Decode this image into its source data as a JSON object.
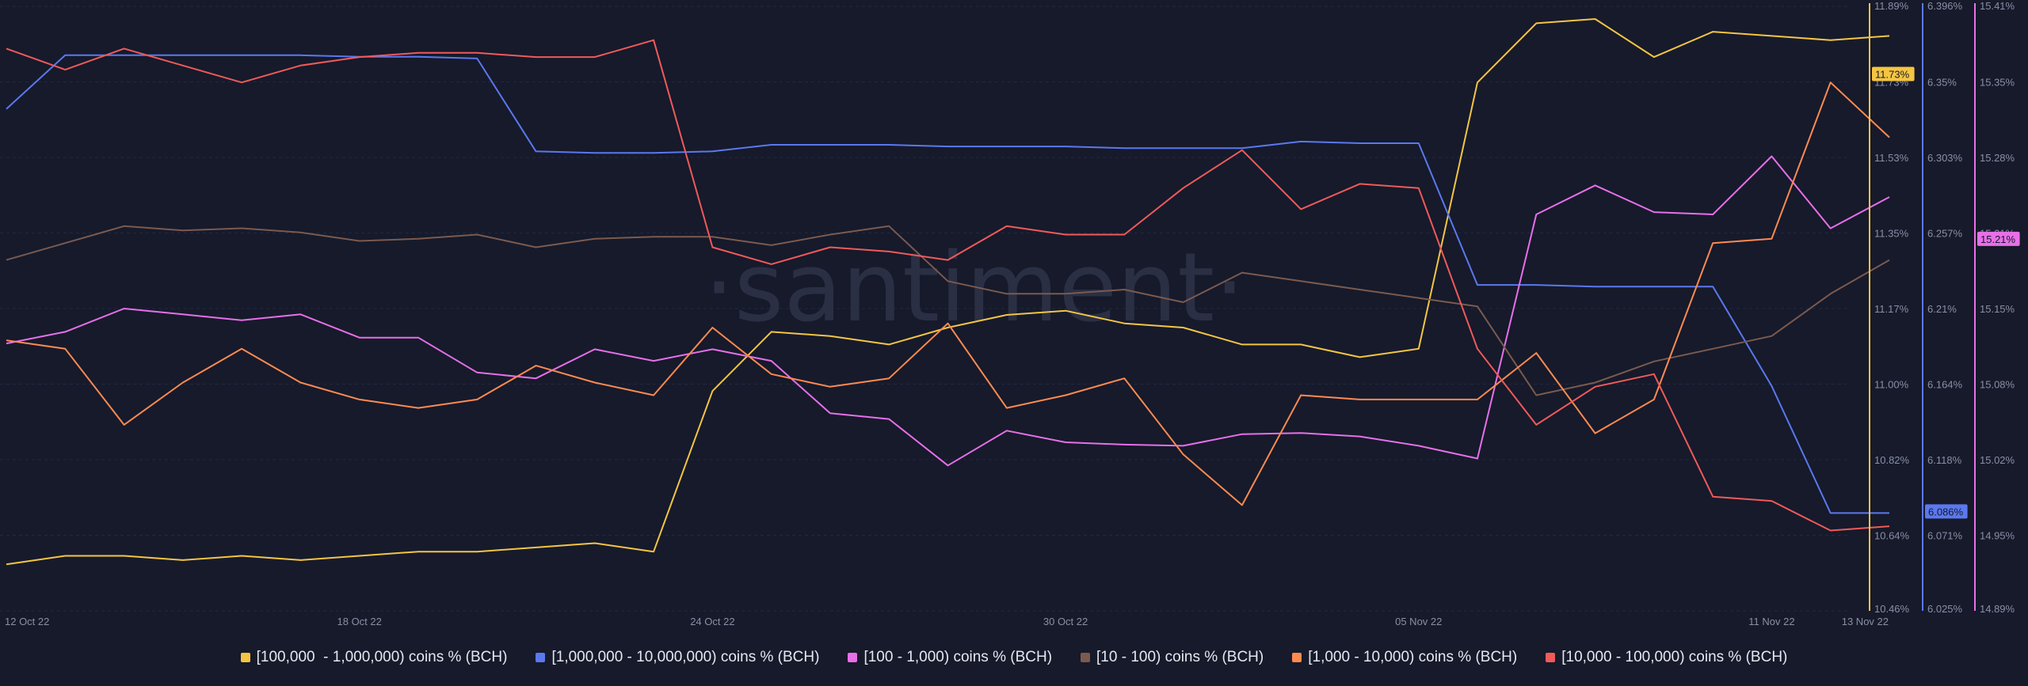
{
  "watermark": "·santiment·",
  "chart_data": {
    "type": "line",
    "x": [
      "12 Oct 22",
      "13 Oct 22",
      "14 Oct 22",
      "15 Oct 22",
      "16 Oct 22",
      "17 Oct 22",
      "18 Oct 22",
      "19 Oct 22",
      "20 Oct 22",
      "21 Oct 22",
      "22 Oct 22",
      "23 Oct 22",
      "24 Oct 22",
      "25 Oct 22",
      "26 Oct 22",
      "27 Oct 22",
      "28 Oct 22",
      "29 Oct 22",
      "30 Oct 22",
      "31 Oct 22",
      "01 Nov 22",
      "02 Nov 22",
      "03 Nov 22",
      "04 Nov 22",
      "05 Nov 22",
      "06 Nov 22",
      "07 Nov 22",
      "08 Nov 22",
      "09 Nov 22",
      "10 Nov 22",
      "11 Nov 22",
      "12 Nov 22",
      "13 Nov 22"
    ],
    "x_ticks": [
      "12 Oct 22",
      "18 Oct 22",
      "24 Oct 22",
      "30 Oct 22",
      "05 Nov 22",
      "11 Nov 22",
      "13 Nov 22"
    ],
    "axes": [
      {
        "id": "y1",
        "color": "#f5c542",
        "ylim": [
          10.46,
          11.89
        ],
        "ticks": [
          "11.89%",
          "11.73%",
          "11.53%",
          "11.35%",
          "11.17%",
          "11.00%",
          "10.82%",
          "10.64%",
          "10.46%"
        ],
        "badge": "11.73%"
      },
      {
        "id": "y2",
        "color": "#5b78ee",
        "ylim": [
          6.025,
          6.396
        ],
        "ticks": [
          "6.396%",
          "6.35%",
          "6.303%",
          "6.257%",
          "6.21%",
          "6.164%",
          "6.118%",
          "6.071%",
          "6.025%"
        ],
        "badge": "6.086%"
      },
      {
        "id": "y3",
        "color": "#e86fe8",
        "ylim": [
          14.89,
          15.41
        ],
        "ticks": [
          "15.41%",
          "15.35%",
          "15.28%",
          "15.21%",
          "15.15%",
          "15.08%",
          "15.02%",
          "14.95%",
          "14.89%"
        ],
        "badge": "15.21%"
      }
    ],
    "series": [
      {
        "name": "[100,000  - 1,000,000) coins % (BCH)",
        "color": "#f5c542",
        "axis": "y1",
        "values": [
          10.57,
          10.59,
          10.59,
          10.58,
          10.59,
          10.58,
          10.59,
          10.6,
          10.6,
          10.61,
          10.62,
          10.6,
          10.98,
          11.12,
          11.11,
          11.09,
          11.13,
          11.16,
          11.17,
          11.14,
          11.13,
          11.09,
          11.09,
          11.06,
          11.08,
          11.71,
          11.85,
          11.86,
          11.77,
          11.83,
          11.82,
          11.81,
          11.82
        ]
      },
      {
        "name": "[1,000,000 - 10,000,000) coins % (BCH)",
        "color": "#5b78ee",
        "axis": "y2",
        "values": [
          6.333,
          6.366,
          6.366,
          6.366,
          6.366,
          6.366,
          6.365,
          6.365,
          6.364,
          6.307,
          6.306,
          6.306,
          6.307,
          6.311,
          6.311,
          6.311,
          6.31,
          6.31,
          6.31,
          6.309,
          6.309,
          6.309,
          6.313,
          6.312,
          6.312,
          6.225,
          6.225,
          6.224,
          6.224,
          6.224,
          6.163,
          6.085,
          6.085
        ]
      },
      {
        "name": "[100 - 1,000) coins % (BCH)",
        "color": "#e86fe8",
        "axis": "y3",
        "values": [
          15.12,
          15.13,
          15.15,
          15.145,
          15.14,
          15.145,
          15.125,
          15.125,
          15.095,
          15.09,
          15.115,
          15.105,
          15.115,
          15.105,
          15.06,
          15.055,
          15.015,
          15.045,
          15.035,
          15.033,
          15.032,
          15.042,
          15.043,
          15.04,
          15.032,
          15.021,
          15.231,
          15.256,
          15.233,
          15.231,
          15.281,
          15.219,
          15.246
        ]
      },
      {
        "name": "[10 - 100) coins % (BCH)",
        "color": "#7b5a4e",
        "axis": "y1",
        "values": [
          11.29,
          11.33,
          11.37,
          11.36,
          11.365,
          11.355,
          11.335,
          11.34,
          11.35,
          11.32,
          11.34,
          11.345,
          11.345,
          11.325,
          11.35,
          11.37,
          11.24,
          11.21,
          11.21,
          11.22,
          11.19,
          11.26,
          11.24,
          11.22,
          11.2,
          11.18,
          10.97,
          11.0,
          11.05,
          11.08,
          11.11,
          11.21,
          11.29
        ]
      },
      {
        "name": "[1,000 - 10,000) coins % (BCH)",
        "color": "#ff8a50",
        "axis": "y1",
        "values": [
          11.1,
          11.08,
          10.9,
          11.0,
          11.08,
          11.0,
          10.96,
          10.94,
          10.96,
          11.04,
          11.0,
          10.97,
          11.13,
          11.02,
          10.99,
          11.01,
          11.14,
          10.94,
          10.97,
          11.01,
          10.83,
          10.71,
          10.97,
          10.96,
          10.96,
          10.96,
          11.07,
          10.88,
          10.96,
          11.33,
          11.34,
          11.71,
          11.58
        ]
      },
      {
        "name": "[10,000 - 100,000) coins % (BCH)",
        "color": "#f05a5a",
        "axis": "y1",
        "values": [
          11.79,
          11.74,
          11.79,
          11.75,
          11.71,
          11.75,
          11.77,
          11.78,
          11.78,
          11.77,
          11.77,
          11.81,
          11.32,
          11.28,
          11.32,
          11.31,
          11.29,
          11.37,
          11.35,
          11.35,
          11.46,
          11.55,
          11.41,
          11.47,
          11.46,
          11.08,
          10.9,
          10.99,
          11.02,
          10.73,
          10.72,
          10.65,
          10.66
        ]
      }
    ]
  }
}
